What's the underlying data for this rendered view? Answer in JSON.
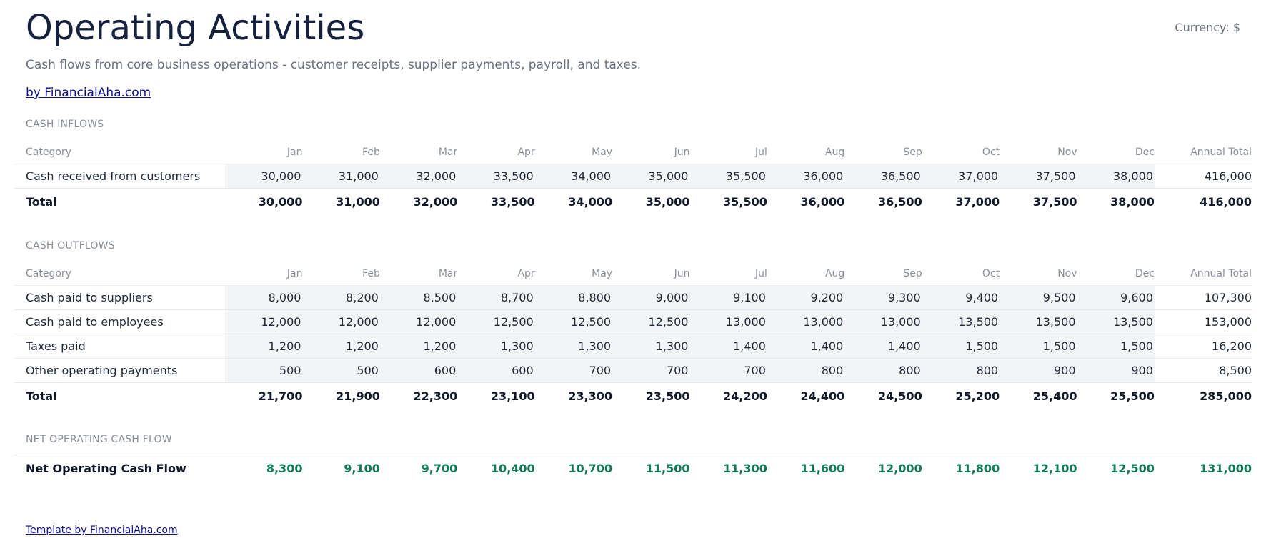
{
  "header": {
    "title": "Operating Activities",
    "currency": "Currency: $",
    "subtitle": "Cash flows from core business operations - customer receipts, supplier payments, payroll, and taxes.",
    "byline": "by FinancialAha.com"
  },
  "columns": [
    "Category",
    "Jan",
    "Feb",
    "Mar",
    "Apr",
    "May",
    "Jun",
    "Jul",
    "Aug",
    "Sep",
    "Oct",
    "Nov",
    "Dec",
    "Annual Total"
  ],
  "inflows": {
    "label": "CASH INFLOWS",
    "rows": [
      {
        "category": "Cash received from customers",
        "values": [
          "30,000",
          "31,000",
          "32,000",
          "33,500",
          "34,000",
          "35,000",
          "35,500",
          "36,000",
          "36,500",
          "37,000",
          "37,500",
          "38,000"
        ],
        "total": "416,000"
      }
    ],
    "totals": {
      "label": "Total",
      "values": [
        "30,000",
        "31,000",
        "32,000",
        "33,500",
        "34,000",
        "35,000",
        "35,500",
        "36,000",
        "36,500",
        "37,000",
        "37,500",
        "38,000"
      ],
      "total": "416,000"
    }
  },
  "outflows": {
    "label": "CASH OUTFLOWS",
    "rows": [
      {
        "category": "Cash paid to suppliers",
        "values": [
          "8,000",
          "8,200",
          "8,500",
          "8,700",
          "8,800",
          "9,000",
          "9,100",
          "9,200",
          "9,300",
          "9,400",
          "9,500",
          "9,600"
        ],
        "total": "107,300"
      },
      {
        "category": "Cash paid to employees",
        "values": [
          "12,000",
          "12,000",
          "12,000",
          "12,500",
          "12,500",
          "12,500",
          "13,000",
          "13,000",
          "13,000",
          "13,500",
          "13,500",
          "13,500"
        ],
        "total": "153,000"
      },
      {
        "category": "Taxes paid",
        "values": [
          "1,200",
          "1,200",
          "1,200",
          "1,300",
          "1,300",
          "1,300",
          "1,400",
          "1,400",
          "1,400",
          "1,500",
          "1,500",
          "1,500"
        ],
        "total": "16,200"
      },
      {
        "category": "Other operating payments",
        "values": [
          "500",
          "500",
          "600",
          "600",
          "700",
          "700",
          "700",
          "800",
          "800",
          "800",
          "900",
          "900"
        ],
        "total": "8,500"
      }
    ],
    "totals": {
      "label": "Total",
      "values": [
        "21,700",
        "21,900",
        "22,300",
        "23,100",
        "23,300",
        "23,500",
        "24,200",
        "24,400",
        "24,500",
        "25,200",
        "25,400",
        "25,500"
      ],
      "total": "285,000"
    }
  },
  "net": {
    "label": "NET OPERATING CASH FLOW",
    "row_label": "Net Operating Cash Flow",
    "values": [
      "8,300",
      "9,100",
      "9,700",
      "10,400",
      "10,700",
      "11,500",
      "11,300",
      "11,600",
      "12,000",
      "11,800",
      "12,100",
      "12,500"
    ],
    "total": "131,000",
    "color": "#0f7a55"
  },
  "footer": {
    "link": "Template by FinancialAha.com"
  }
}
